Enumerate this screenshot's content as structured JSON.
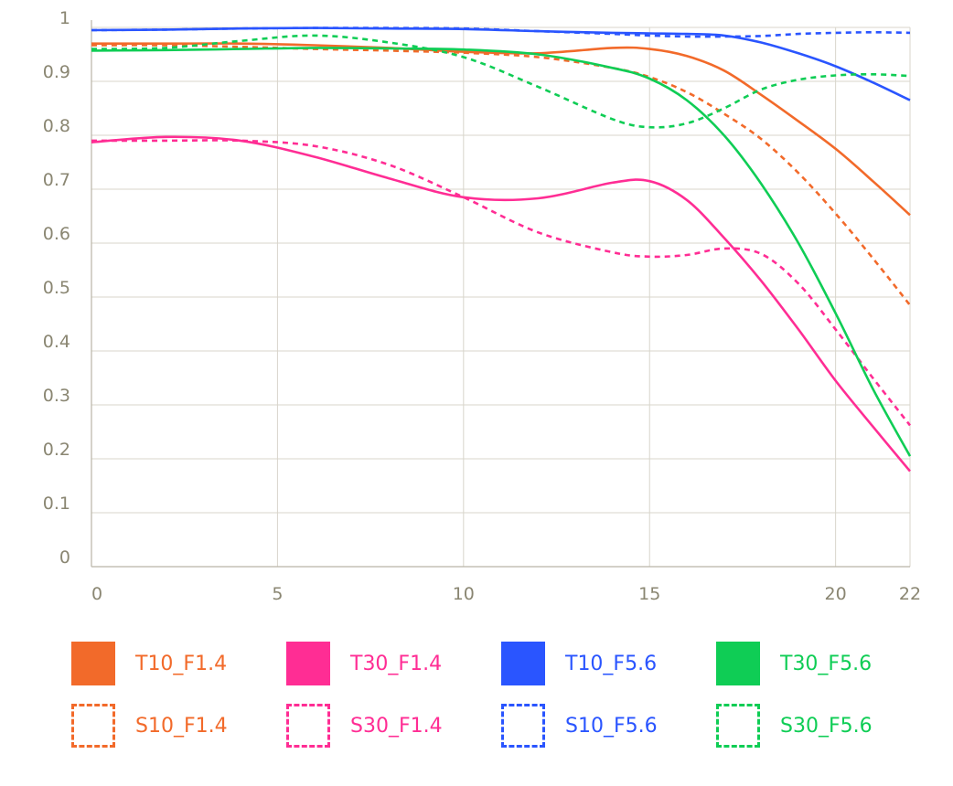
{
  "chart_data": {
    "type": "line",
    "title": "",
    "xlabel": "",
    "ylabel": "",
    "xlim": [
      0,
      22
    ],
    "ylim": [
      0,
      1
    ],
    "x_ticks": [
      0,
      5,
      10,
      15,
      20,
      22
    ],
    "y_ticks": [
      0,
      0.1,
      0.2,
      0.3,
      0.4,
      0.5,
      0.6,
      0.7,
      0.8,
      0.9,
      1
    ],
    "x_tick_labels": [
      "0",
      "5",
      "10",
      "15",
      "20",
      "22"
    ],
    "y_tick_labels": [
      "0",
      "0.1",
      "0.2",
      "0.3",
      "0.4",
      "0.5",
      "0.6",
      "0.7",
      "0.8",
      "0.9",
      "1"
    ],
    "grid": true,
    "legend_position": "bottom",
    "x": [
      0,
      2,
      4,
      6,
      8,
      10,
      12,
      14,
      15,
      16,
      17,
      18,
      19,
      20,
      21,
      22
    ],
    "series": [
      {
        "name": "T10_F1.4",
        "color": "#f26a2a",
        "style": "solid",
        "values": [
          0.97,
          0.97,
          0.97,
          0.967,
          0.962,
          0.955,
          0.952,
          0.962,
          0.96,
          0.947,
          0.92,
          0.875,
          0.826,
          0.775,
          0.715,
          0.652
        ]
      },
      {
        "name": "S10_F1.4",
        "color": "#f26a2a",
        "style": "dashed",
        "values": [
          0.967,
          0.967,
          0.964,
          0.96,
          0.957,
          0.953,
          0.945,
          0.925,
          0.908,
          0.88,
          0.84,
          0.793,
          0.73,
          0.655,
          0.572,
          0.485
        ]
      },
      {
        "name": "T30_F1.4",
        "color": "#ff2d94",
        "style": "solid",
        "values": [
          0.787,
          0.797,
          0.79,
          0.76,
          0.72,
          0.685,
          0.683,
          0.712,
          0.715,
          0.68,
          0.61,
          0.53,
          0.44,
          0.345,
          0.26,
          0.177
        ]
      },
      {
        "name": "S30_F1.4",
        "color": "#ff2d94",
        "style": "dashed",
        "values": [
          0.79,
          0.79,
          0.79,
          0.78,
          0.745,
          0.685,
          0.62,
          0.583,
          0.575,
          0.578,
          0.59,
          0.58,
          0.525,
          0.44,
          0.35,
          0.262
        ]
      },
      {
        "name": "T10_F5.6",
        "color": "#2a55ff",
        "style": "solid",
        "values": [
          0.995,
          0.996,
          0.998,
          0.999,
          0.998,
          0.997,
          0.993,
          0.99,
          0.989,
          0.988,
          0.985,
          0.972,
          0.952,
          0.928,
          0.898,
          0.865
        ]
      },
      {
        "name": "S10_F5.6",
        "color": "#2a55ff",
        "style": "dashed",
        "values": [
          0.995,
          0.996,
          0.998,
          0.999,
          0.999,
          0.998,
          0.993,
          0.988,
          0.985,
          0.983,
          0.983,
          0.984,
          0.988,
          0.99,
          0.991,
          0.99
        ]
      },
      {
        "name": "T30_F5.6",
        "color": "#0fcd55",
        "style": "solid",
        "values": [
          0.957,
          0.958,
          0.96,
          0.962,
          0.961,
          0.959,
          0.95,
          0.925,
          0.905,
          0.865,
          0.8,
          0.71,
          0.6,
          0.47,
          0.33,
          0.205
        ]
      },
      {
        "name": "S30_F5.6",
        "color": "#0fcd55",
        "style": "dashed",
        "values": [
          0.96,
          0.962,
          0.975,
          0.985,
          0.972,
          0.945,
          0.89,
          0.83,
          0.815,
          0.822,
          0.85,
          0.885,
          0.903,
          0.911,
          0.913,
          0.91
        ]
      }
    ]
  }
}
